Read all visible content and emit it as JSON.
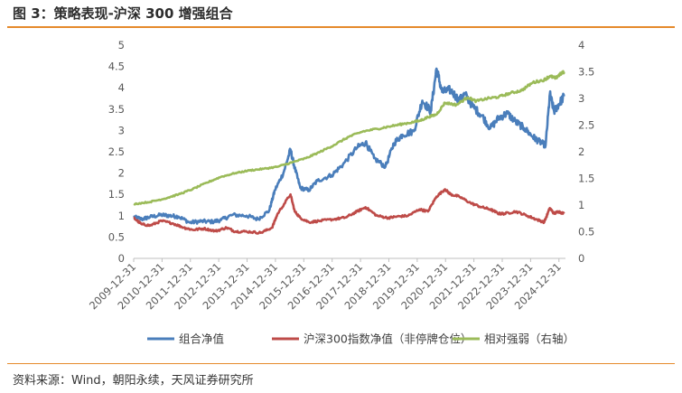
{
  "title": "图 3：策略表现-沪深 300 增强组合",
  "source": "资料来源：Wind，朝阳永续，天风证券研究所",
  "colors": {
    "title_rule": "#e58a2b",
    "portfolio": "#4a7ebb",
    "index": "#be4b48",
    "relative": "#9bbb59"
  },
  "chart_data": {
    "type": "line",
    "x_categories": [
      "2009-12-31",
      "2010-12-31",
      "2011-12-31",
      "2012-12-31",
      "2013-12-31",
      "2014-12-31",
      "2015-12-31",
      "2016-12-31",
      "2017-12-31",
      "2018-12-31",
      "2019-12-31",
      "2020-12-31",
      "2021-12-31",
      "2022-12-31",
      "2023-12-31",
      "2024-12-31"
    ],
    "x_ticks": [
      "2009-12-31",
      "2010-12-31",
      "2011-12-31",
      "2012-12-31",
      "2013-12-31",
      "2014-12-31",
      "2015-12-31",
      "2016-12-31",
      "2017-12-31",
      "2018-12-31",
      "2019-12-31",
      "2020-12-31",
      "2021-12-31",
      "2022-12-31",
      "2023-12-31",
      "2024-12-31"
    ],
    "y_left": {
      "min": 0,
      "max": 5,
      "ticks": [
        "0",
        "0.5",
        "1",
        "1.5",
        "2",
        "2.5",
        "3",
        "3.5",
        "4",
        "4.5",
        "5"
      ]
    },
    "y_right": {
      "min": 0,
      "max": 4,
      "ticks": [
        "0",
        "0.5",
        "1",
        "1.5",
        "2",
        "2.5",
        "3",
        "3.5",
        "4"
      ]
    },
    "legend_position": "bottom",
    "series": [
      {
        "name": "组合净值",
        "axis": "left",
        "color": "#4a7ebb",
        "x": [
          2009.92,
          2010.2,
          2010.5,
          2010.9,
          2011.2,
          2011.5,
          2011.9,
          2012.3,
          2012.7,
          2013.0,
          2013.4,
          2013.9,
          2014.3,
          2014.7,
          2014.9,
          2015.2,
          2015.45,
          2015.6,
          2015.8,
          2016.1,
          2016.4,
          2016.9,
          2017.3,
          2017.8,
          2018.1,
          2018.4,
          2018.8,
          2019.1,
          2019.4,
          2019.8,
          2020.1,
          2020.4,
          2020.6,
          2020.8,
          2021.1,
          2021.4,
          2021.6,
          2021.9,
          2022.2,
          2022.5,
          2022.8,
          2023.1,
          2023.4,
          2023.7,
          2024.0,
          2024.2,
          2024.45,
          2024.6,
          2024.75,
          2024.9,
          2025.1
        ],
        "y": [
          0.97,
          0.92,
          0.97,
          1.02,
          1.0,
          0.98,
          0.84,
          0.87,
          0.86,
          0.9,
          1.02,
          1.0,
          0.92,
          1.12,
          1.6,
          2.0,
          2.55,
          2.12,
          1.65,
          1.6,
          1.82,
          1.95,
          2.2,
          2.6,
          2.72,
          2.35,
          2.15,
          2.7,
          2.9,
          2.98,
          3.7,
          3.45,
          4.45,
          3.9,
          3.95,
          3.7,
          3.85,
          3.55,
          3.35,
          3.05,
          3.3,
          3.4,
          3.2,
          3.05,
          2.85,
          2.75,
          2.65,
          3.85,
          3.45,
          3.6,
          3.8
        ]
      },
      {
        "name": "沪深300指数净值（非停牌仓位）",
        "axis": "left",
        "color": "#be4b48",
        "x": [
          2009.92,
          2010.2,
          2010.5,
          2010.9,
          2011.3,
          2011.7,
          2012.0,
          2012.4,
          2012.8,
          2013.2,
          2013.5,
          2013.9,
          2014.4,
          2014.8,
          2015.0,
          2015.45,
          2015.6,
          2015.8,
          2016.1,
          2016.5,
          2017.0,
          2017.4,
          2017.8,
          2018.1,
          2018.5,
          2018.9,
          2019.2,
          2019.6,
          2020.0,
          2020.3,
          2020.6,
          2020.9,
          2021.1,
          2021.4,
          2021.8,
          2022.2,
          2022.5,
          2022.8,
          2023.0,
          2023.4,
          2023.8,
          2024.1,
          2024.4,
          2024.6,
          2024.75,
          2024.9,
          2025.1
        ],
        "y": [
          0.95,
          0.8,
          0.77,
          0.88,
          0.82,
          0.72,
          0.67,
          0.7,
          0.64,
          0.72,
          0.63,
          0.63,
          0.6,
          0.72,
          1.05,
          1.5,
          1.1,
          0.95,
          0.85,
          0.88,
          0.92,
          0.96,
          1.1,
          1.2,
          1.0,
          0.95,
          0.98,
          1.0,
          1.15,
          1.1,
          1.45,
          1.62,
          1.5,
          1.45,
          1.3,
          1.2,
          1.15,
          1.05,
          1.05,
          1.1,
          1.0,
          0.92,
          0.85,
          1.18,
          1.05,
          1.1,
          1.05
        ]
      },
      {
        "name": "相对强弱（右轴）",
        "axis": "right",
        "color": "#9bbb59",
        "x": [
          2009.92,
          2010.5,
          2011.0,
          2011.5,
          2012.0,
          2012.5,
          2013.0,
          2013.5,
          2014.0,
          2014.5,
          2015.0,
          2015.5,
          2016.0,
          2016.5,
          2017.0,
          2017.5,
          2018.0,
          2018.5,
          2019.0,
          2019.5,
          2020.0,
          2020.3,
          2020.6,
          2020.9,
          2021.3,
          2021.7,
          2022.0,
          2022.4,
          2022.8,
          2023.2,
          2023.6,
          2024.0,
          2024.4,
          2024.6,
          2024.8,
          2024.95,
          2025.1
        ],
        "y": [
          1.02,
          1.06,
          1.12,
          1.2,
          1.3,
          1.42,
          1.53,
          1.6,
          1.65,
          1.68,
          1.72,
          1.8,
          1.88,
          2.0,
          2.13,
          2.28,
          2.38,
          2.43,
          2.48,
          2.53,
          2.58,
          2.65,
          2.7,
          2.92,
          2.88,
          3.02,
          2.95,
          3.0,
          3.03,
          3.1,
          3.15,
          3.3,
          3.35,
          3.42,
          3.38,
          3.45,
          3.5
        ]
      }
    ]
  }
}
